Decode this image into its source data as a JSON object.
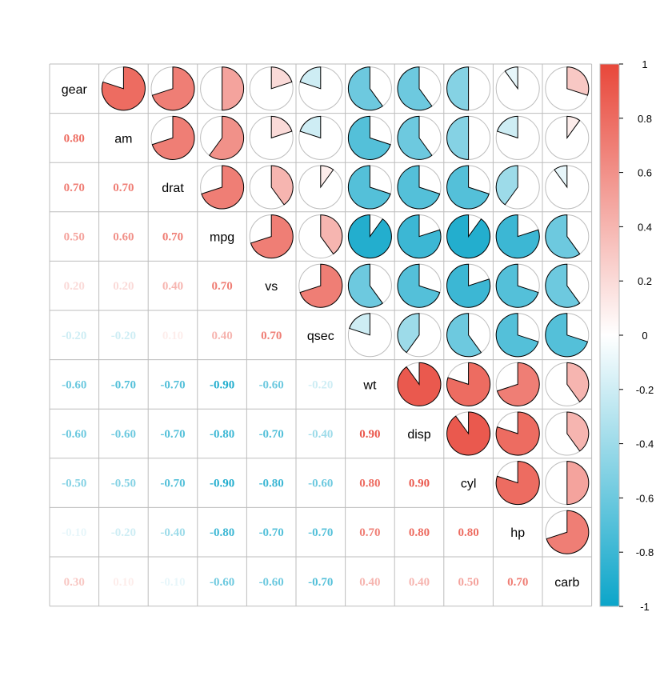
{
  "chart_data": {
    "type": "heatmap",
    "variables": [
      "gear",
      "am",
      "drat",
      "mpg",
      "vs",
      "qsec",
      "wt",
      "disp",
      "cyl",
      "hp",
      "carb"
    ],
    "matrix": [
      [
        1,
        0.8,
        0.7,
        0.5,
        0.2,
        -0.2,
        -0.6,
        -0.6,
        -0.5,
        -0.1,
        0.3
      ],
      [
        0.8,
        1,
        0.7,
        0.6,
        0.2,
        -0.2,
        -0.7,
        -0.6,
        -0.5,
        -0.2,
        0.1
      ],
      [
        0.7,
        0.7,
        1,
        0.7,
        0.4,
        0.1,
        -0.7,
        -0.7,
        -0.7,
        -0.4,
        -0.1
      ],
      [
        0.5,
        0.6,
        0.7,
        1,
        0.7,
        0.4,
        -0.9,
        -0.8,
        -0.9,
        -0.8,
        -0.6
      ],
      [
        0.2,
        0.2,
        0.4,
        0.7,
        1,
        0.7,
        -0.6,
        -0.7,
        -0.8,
        -0.7,
        -0.6
      ],
      [
        -0.2,
        -0.2,
        0.1,
        0.4,
        0.7,
        1,
        -0.2,
        -0.4,
        -0.6,
        -0.7,
        -0.7
      ],
      [
        -0.6,
        -0.7,
        -0.7,
        -0.9,
        -0.6,
        -0.2,
        1,
        0.9,
        0.8,
        0.7,
        0.4
      ],
      [
        -0.6,
        -0.6,
        -0.7,
        -0.8,
        -0.7,
        -0.4,
        0.9,
        1,
        0.9,
        0.8,
        0.4
      ],
      [
        -0.5,
        -0.5,
        -0.7,
        -0.9,
        -0.8,
        -0.6,
        0.8,
        0.9,
        1,
        0.8,
        0.5
      ],
      [
        -0.1,
        -0.2,
        -0.4,
        -0.8,
        -0.7,
        -0.7,
        0.7,
        0.8,
        0.8,
        1,
        0.7
      ],
      [
        0.3,
        0.1,
        -0.1,
        -0.6,
        -0.6,
        -0.7,
        0.4,
        0.4,
        0.5,
        0.7,
        1
      ]
    ],
    "lower_panel": "number",
    "upper_panel": "pie",
    "diagonal": "variable names",
    "number_format": "0.00",
    "colorbar": {
      "range": [
        -1,
        1
      ],
      "ticks": [
        "1",
        "0.8",
        "0.6",
        "0.4",
        "0.2",
        "0",
        "-0.2",
        "-0.4",
        "-0.6",
        "-0.8",
        "-1"
      ],
      "placement": "right"
    },
    "colors": {
      "negative": "#0ba5c9",
      "zero": "#ffffff",
      "positive": "#e8473a",
      "grid": "#bdbdbd",
      "pie_outline": "#000000",
      "circle_outline": "#bdbdbd"
    },
    "grid": true
  }
}
